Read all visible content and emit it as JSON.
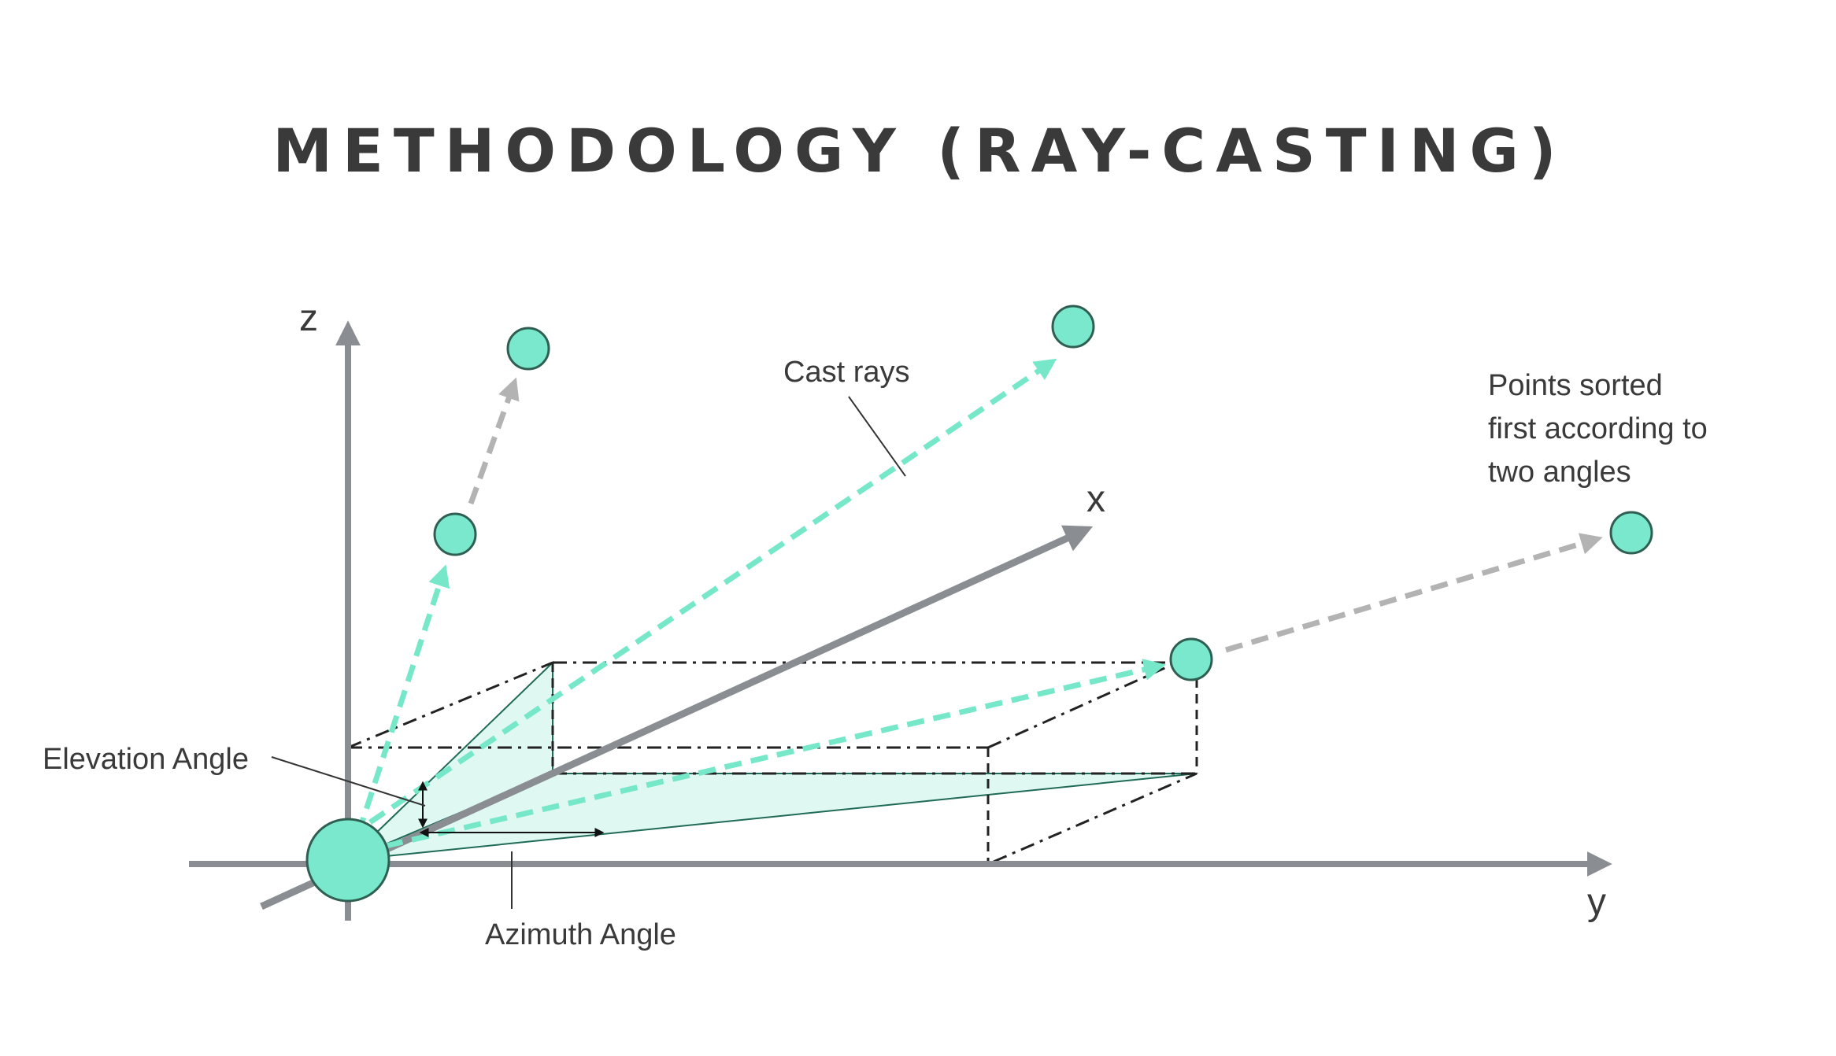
{
  "title": "METHODOLOGY (RAY-CASTING)",
  "axes": {
    "z": "z",
    "x": "x",
    "y": "y"
  },
  "labels": {
    "cast_rays": "Cast rays",
    "points_sorted": [
      "Points sorted",
      "first according to",
      "two angles"
    ],
    "elevation_angle": "Elevation Angle",
    "azimuth_angle": "Azimuth Angle"
  },
  "colors": {
    "title": "#3a3a3a",
    "axis": "#8a8e92",
    "ray_hit": "#76e8c9",
    "ray_miss": "#b3b3b3",
    "point_fill": "#7ae8cc",
    "point_stroke": "#2f5f52",
    "plane_fill": "#e0f8f2",
    "plane_stroke": "#1f6b57",
    "guide": "#222222",
    "text": "#3a3a3a"
  }
}
